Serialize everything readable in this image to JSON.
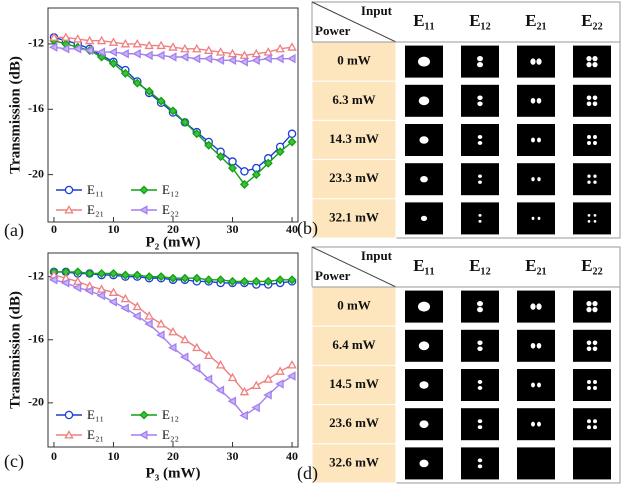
{
  "chart_data": [
    {
      "type": "line",
      "label": "(a)",
      "ylabel": "Transmission (dB)",
      "xlabel": "P₂ (mW)",
      "x": [
        0,
        2,
        4,
        6,
        8,
        10,
        12,
        14,
        16,
        18,
        20,
        22,
        24,
        26,
        28,
        30,
        32,
        34,
        36,
        38,
        40
      ],
      "xlim": [
        -1,
        41
      ],
      "xticks": [
        0,
        10,
        20,
        30,
        40
      ],
      "ylim": [
        -22.9,
        -9.8
      ],
      "yticks": [
        -12,
        -16,
        -20
      ],
      "series": [
        {
          "name": "E₁₁",
          "color": "#1c3ed6",
          "marker": "circle",
          "filled": false,
          "values": [
            -11.6,
            -11.8,
            -12.0,
            -12.3,
            -12.7,
            -13.1,
            -13.6,
            -14.3,
            -15.0,
            -15.6,
            -16.2,
            -16.8,
            -17.4,
            -18.0,
            -18.6,
            -19.2,
            -19.8,
            -19.6,
            -19.0,
            -18.3,
            -17.5
          ]
        },
        {
          "name": "E₁₂",
          "color": "#12a012",
          "marker": "diamond",
          "filled": true,
          "values": [
            -11.8,
            -12.0,
            -12.2,
            -12.4,
            -12.8,
            -13.2,
            -13.8,
            -14.4,
            -14.9,
            -15.5,
            -16.1,
            -16.8,
            -17.5,
            -18.2,
            -18.9,
            -19.6,
            -20.6,
            -20.0,
            -19.3,
            -18.6,
            -18.0
          ]
        },
        {
          "name": "E₂₁",
          "color": "#f07f7f",
          "marker": "triangle",
          "filled": false,
          "values": [
            -11.6,
            -11.6,
            -11.7,
            -11.8,
            -11.8,
            -11.9,
            -12.0,
            -12.0,
            -12.1,
            -12.1,
            -12.2,
            -12.3,
            -12.3,
            -12.4,
            -12.5,
            -12.6,
            -12.7,
            -12.6,
            -12.5,
            -12.3,
            -12.2
          ]
        },
        {
          "name": "E₂₂",
          "color": "#a47ff0",
          "marker": "left",
          "filled": true,
          "values": [
            -12.2,
            -12.3,
            -12.3,
            -12.4,
            -12.5,
            -12.5,
            -12.6,
            -12.6,
            -12.7,
            -12.7,
            -12.8,
            -12.8,
            -12.9,
            -12.9,
            -13.0,
            -13.0,
            -13.1,
            -13.0,
            -12.9,
            -12.9,
            -12.9
          ]
        }
      ]
    },
    {
      "type": "line",
      "label": "(c)",
      "ylabel": "Transmission (dB)",
      "xlabel": "P₃ (mW)",
      "x": [
        0,
        2,
        4,
        6,
        8,
        10,
        12,
        14,
        16,
        18,
        20,
        22,
        24,
        26,
        28,
        30,
        32,
        34,
        36,
        38,
        40
      ],
      "xlim": [
        -1,
        41
      ],
      "xticks": [
        0,
        10,
        20,
        30,
        40
      ],
      "ylim": [
        -22.8,
        -10.5
      ],
      "yticks": [
        -12,
        -16,
        -20
      ],
      "series": [
        {
          "name": "E₁₁",
          "color": "#1c3ed6",
          "marker": "circle",
          "filled": false,
          "values": [
            -11.7,
            -11.7,
            -11.8,
            -11.8,
            -11.9,
            -11.9,
            -12.0,
            -12.0,
            -12.1,
            -12.1,
            -12.2,
            -12.2,
            -12.3,
            -12.3,
            -12.4,
            -12.4,
            -12.4,
            -12.5,
            -12.5,
            -12.4,
            -12.3
          ]
        },
        {
          "name": "E₁₂",
          "color": "#12a012",
          "marker": "diamond",
          "filled": true,
          "values": [
            -11.7,
            -11.7,
            -11.7,
            -11.8,
            -11.8,
            -11.8,
            -11.9,
            -11.9,
            -12.0,
            -12.0,
            -12.1,
            -12.1,
            -12.1,
            -12.2,
            -12.2,
            -12.3,
            -12.3,
            -12.3,
            -12.3,
            -12.2,
            -12.2
          ]
        },
        {
          "name": "E₂₁",
          "color": "#f07f7f",
          "marker": "triangle",
          "filled": false,
          "values": [
            -11.9,
            -12.1,
            -12.3,
            -12.6,
            -12.8,
            -13.0,
            -13.4,
            -13.9,
            -14.5,
            -15.0,
            -15.5,
            -16.0,
            -16.5,
            -17.0,
            -17.6,
            -18.4,
            -19.3,
            -18.9,
            -18.5,
            -18.0,
            -17.6
          ]
        },
        {
          "name": "E₂₂",
          "color": "#a47ff0",
          "marker": "left",
          "filled": true,
          "values": [
            -12.2,
            -12.4,
            -12.7,
            -12.9,
            -13.2,
            -13.6,
            -14.0,
            -14.5,
            -15.0,
            -15.7,
            -16.5,
            -17.1,
            -17.8,
            -18.5,
            -19.2,
            -19.9,
            -20.8,
            -20.3,
            -19.5,
            -18.8,
            -18.3
          ]
        }
      ]
    }
  ],
  "tables": [
    {
      "label": "(b)",
      "corner_top": "Input",
      "corner_bottom": "Power",
      "columns": [
        "E₁₁",
        "E₁₂",
        "E₂₁",
        "E₂₂"
      ],
      "rows": [
        "0 mW",
        "6.3 mW",
        "14.3 mW",
        "23.3 mW",
        "32.1 mW"
      ]
    },
    {
      "label": "(d)",
      "corner_top": "Input",
      "corner_bottom": "Power",
      "columns": [
        "E₁₁",
        "E₁₂",
        "E₂₁",
        "E₂₂"
      ],
      "rows": [
        "0 mW",
        "6.4 mW",
        "14.5 mW",
        "23.6 mW",
        "32.6 mW"
      ]
    }
  ]
}
